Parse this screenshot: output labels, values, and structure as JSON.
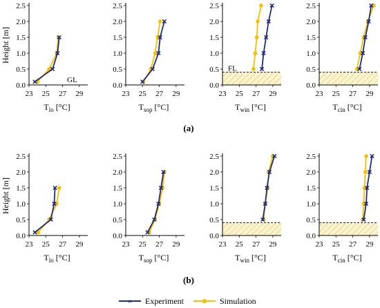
{
  "colors": {
    "experiment": "#1f2a7a",
    "simulation": "#f5bf00",
    "hatch": "#e6c64a",
    "hatch_fill": "#fbf3d2",
    "axis": "#000000"
  },
  "shared_axes": {
    "ylabel": "Height [m]",
    "yticks": [
      "0.0",
      "0.5",
      "1.0",
      "1.5",
      "2.0",
      "2.5"
    ],
    "xticks": [
      "23",
      "25",
      "27",
      "29"
    ],
    "xlim": [
      23,
      30
    ],
    "ylim": [
      0,
      2.5
    ]
  },
  "panel_labels": [
    "(a)",
    "(b)"
  ],
  "legend": {
    "experiment": "Experiment",
    "simulation": "Simulation"
  },
  "xlabels": [
    {
      "main": "T",
      "sub": "lo",
      "unit": "[°C]"
    },
    {
      "main": "T",
      "sub": "sop",
      "unit": "[°C]"
    },
    {
      "main": "T",
      "sub": "win",
      "unit": "[°C]"
    },
    {
      "main": "T",
      "sub": "cin",
      "unit": "[°C]"
    }
  ],
  "annotations": {
    "gl": "GL",
    "fl": "FL"
  },
  "chart_data": [
    {
      "type": "line",
      "row": "a",
      "col": 0,
      "xlabel": "T lo [°C]",
      "ylabel": "Height [m]",
      "xlim": [
        23,
        30
      ],
      "ylim": [
        0,
        2.5
      ],
      "annotation": "GL",
      "floor_level": null,
      "series": [
        {
          "name": "Experiment",
          "points": [
            [
              23.7,
              0.1
            ],
            [
              25.8,
              0.5
            ],
            [
              26.4,
              1.0
            ],
            [
              26.6,
              1.5
            ]
          ]
        },
        {
          "name": "Simulation",
          "points": [
            [
              24.0,
              0.1
            ],
            [
              25.4,
              0.5
            ],
            [
              26.3,
              1.0
            ],
            [
              26.5,
              1.5
            ]
          ]
        }
      ]
    },
    {
      "type": "line",
      "row": "a",
      "col": 1,
      "xlabel": "T sop [°C]",
      "ylabel": "Height [m]",
      "xlim": [
        23,
        30
      ],
      "ylim": [
        0,
        2.5
      ],
      "annotation": null,
      "floor_level": null,
      "series": [
        {
          "name": "Experiment",
          "points": [
            [
              25.0,
              0.1
            ],
            [
              26.2,
              0.5
            ],
            [
              26.9,
              1.0
            ],
            [
              27.1,
              1.5
            ],
            [
              27.6,
              2.0
            ]
          ]
        },
        {
          "name": "Simulation",
          "points": [
            [
              25.1,
              0.1
            ],
            [
              26.0,
              0.5
            ],
            [
              26.5,
              1.0
            ],
            [
              26.8,
              1.5
            ],
            [
              27.1,
              2.0
            ]
          ]
        }
      ]
    },
    {
      "type": "line",
      "row": "a",
      "col": 2,
      "xlabel": "T win [°C]",
      "ylabel": "Height [m]",
      "xlim": [
        23,
        30
      ],
      "ylim": [
        0,
        2.5
      ],
      "annotation": "FL",
      "floor_level": 0.4,
      "series": [
        {
          "name": "Experiment",
          "points": [
            [
              27.7,
              0.5
            ],
            [
              27.9,
              1.0
            ],
            [
              28.2,
              1.5
            ],
            [
              28.5,
              2.0
            ],
            [
              28.9,
              2.5
            ]
          ]
        },
        {
          "name": "Simulation",
          "points": [
            [
              26.7,
              0.5
            ],
            [
              26.9,
              1.0
            ],
            [
              27.1,
              1.5
            ],
            [
              27.2,
              2.0
            ],
            [
              27.6,
              2.5
            ]
          ]
        }
      ]
    },
    {
      "type": "line",
      "row": "a",
      "col": 3,
      "xlabel": "T cin [°C]",
      "ylabel": "Height [m]",
      "xlim": [
        23,
        30
      ],
      "ylim": [
        0,
        2.5
      ],
      "annotation": null,
      "floor_level": 0.4,
      "series": [
        {
          "name": "Experiment",
          "points": [
            [
              27.8,
              0.5
            ],
            [
              28.2,
              1.0
            ],
            [
              28.5,
              1.5
            ],
            [
              28.9,
              2.0
            ],
            [
              29.2,
              2.5
            ]
          ]
        },
        {
          "name": "Simulation",
          "points": [
            [
              27.5,
              0.5
            ],
            [
              27.9,
              1.0
            ],
            [
              28.3,
              1.5
            ],
            [
              28.8,
              2.0
            ],
            [
              29.5,
              2.5
            ]
          ]
        }
      ]
    },
    {
      "type": "line",
      "row": "b",
      "col": 0,
      "xlabel": "T lo [°C]",
      "ylabel": "Height [m]",
      "xlim": [
        23,
        30
      ],
      "ylim": [
        0,
        2.5
      ],
      "annotation": null,
      "floor_level": null,
      "series": [
        {
          "name": "Experiment",
          "points": [
            [
              23.7,
              0.1
            ],
            [
              25.6,
              0.5
            ],
            [
              26.0,
              1.0
            ],
            [
              26.1,
              1.5
            ]
          ]
        },
        {
          "name": "Simulation",
          "points": [
            [
              24.1,
              0.1
            ],
            [
              25.4,
              0.5
            ],
            [
              26.3,
              1.0
            ],
            [
              26.6,
              1.5
            ]
          ]
        }
      ]
    },
    {
      "type": "line",
      "row": "b",
      "col": 1,
      "xlabel": "T sop [°C]",
      "ylabel": "Height [m]",
      "xlim": [
        23,
        30
      ],
      "ylim": [
        0,
        2.5
      ],
      "annotation": null,
      "floor_level": null,
      "series": [
        {
          "name": "Experiment",
          "points": [
            [
              25.6,
              0.1
            ],
            [
              26.4,
              0.5
            ],
            [
              26.9,
              1.0
            ],
            [
              27.2,
              1.5
            ],
            [
              27.5,
              2.0
            ]
          ]
        },
        {
          "name": "Simulation",
          "points": [
            [
              25.8,
              0.1
            ],
            [
              26.5,
              0.5
            ],
            [
              27.0,
              1.0
            ],
            [
              27.4,
              1.5
            ],
            [
              27.6,
              2.0
            ]
          ]
        }
      ]
    },
    {
      "type": "line",
      "row": "b",
      "col": 2,
      "xlabel": "T win [°C]",
      "ylabel": "Height [m]",
      "xlim": [
        23,
        30
      ],
      "ylim": [
        0,
        2.5
      ],
      "annotation": null,
      "floor_level": 0.4,
      "series": [
        {
          "name": "Experiment",
          "points": [
            [
              27.8,
              0.5
            ],
            [
              28.1,
              1.0
            ],
            [
              28.3,
              1.5
            ],
            [
              28.6,
              2.0
            ],
            [
              29.2,
              2.5
            ]
          ]
        },
        {
          "name": "Simulation",
          "points": [
            [
              27.9,
              0.5
            ],
            [
              28.1,
              1.0
            ],
            [
              28.4,
              1.5
            ],
            [
              28.5,
              2.0
            ],
            [
              29.0,
              2.5
            ]
          ]
        }
      ]
    },
    {
      "type": "line",
      "row": "b",
      "col": 3,
      "xlabel": "T cin [°C]",
      "ylabel": "Height [m]",
      "xlim": [
        23,
        30
      ],
      "ylim": [
        0,
        2.5
      ],
      "annotation": null,
      "floor_level": 0.4,
      "series": [
        {
          "name": "Experiment",
          "points": [
            [
              28.3,
              0.5
            ],
            [
              28.6,
              1.0
            ],
            [
              28.7,
              1.5
            ],
            [
              29.0,
              2.0
            ],
            [
              29.3,
              2.5
            ]
          ]
        },
        {
          "name": "Simulation",
          "points": [
            [
              28.2,
              0.5
            ],
            [
              28.3,
              1.0
            ],
            [
              28.4,
              1.5
            ],
            [
              28.5,
              2.0
            ],
            [
              28.6,
              2.5
            ]
          ]
        }
      ]
    }
  ]
}
